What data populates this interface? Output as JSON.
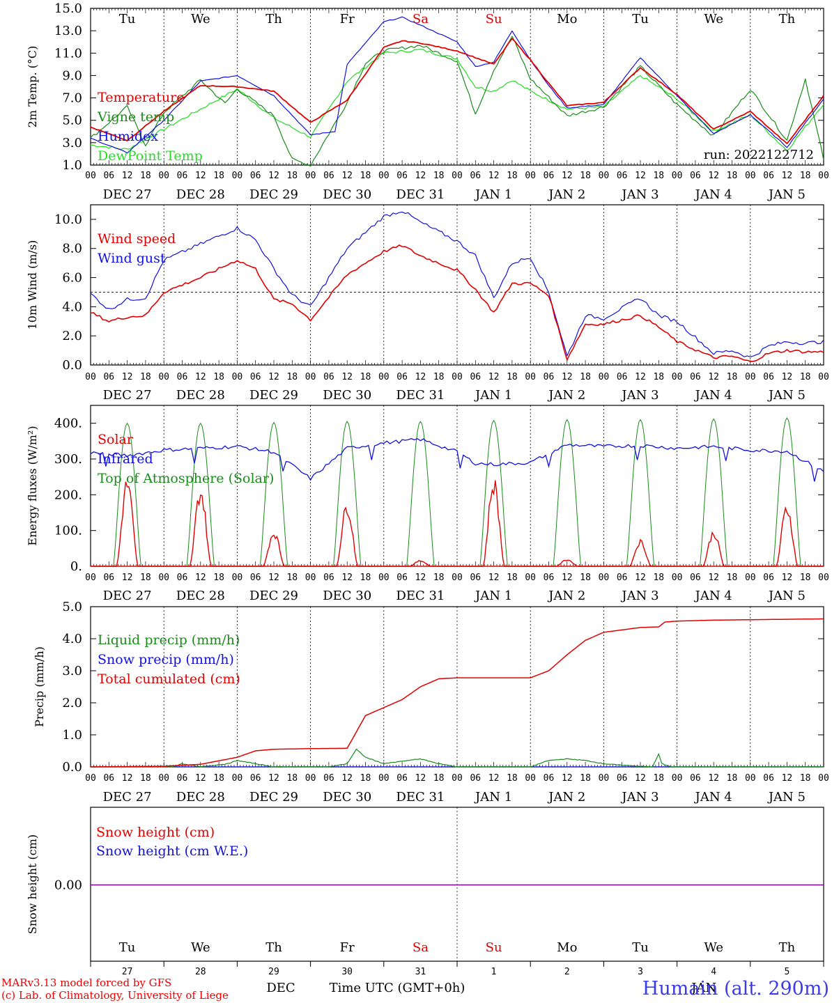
{
  "footer": {
    "model_line1": "MARv3.13 model forced by GFS",
    "model_line2": "(c) Lab. of Climatology, University of Liege",
    "month_label": "DEC",
    "month_label2": "JAN",
    "time_label": "Time UTC (GMT+0h)",
    "location": "Humain (alt. 290m)"
  },
  "colors": {
    "red": "#e00000",
    "green": "#1a8a1a",
    "blue": "#1010e0",
    "lightgreen": "#22dd22",
    "purple": "#8000a0"
  },
  "timeline": {
    "day_names": [
      "Tu",
      "We",
      "Th",
      "Fr",
      "Sa",
      "Su",
      "Mo",
      "Tu",
      "We",
      "Th"
    ],
    "weekend_flags": [
      false,
      false,
      false,
      false,
      true,
      true,
      false,
      false,
      false,
      false
    ],
    "date_labels": [
      "DEC 27",
      "DEC 28",
      "DEC 29",
      "DEC 30",
      "DEC 31",
      "JAN  1",
      "JAN  2",
      "JAN  3",
      "JAN  4",
      "JAN  5"
    ],
    "day_numbers": [
      "27",
      "28",
      "29",
      "30",
      "31",
      "1",
      "2",
      "3",
      "4",
      "5"
    ],
    "hour_ticks": [
      "00",
      "06",
      "12",
      "18"
    ],
    "end_tick": "00"
  },
  "chart_data": [
    {
      "type": "line",
      "ylabel": "2m Temp. (°C)",
      "ylim": [
        1,
        15
      ],
      "yticks": [
        "1.0",
        "3.0",
        "5.0",
        "7.0",
        "9.0",
        "11.0",
        "13.0",
        "15.0"
      ],
      "annotation": "run: 2022122712",
      "x_unit": "hours since DEC 27 00 UTC",
      "series": [
        {
          "name": "Temperature",
          "color": "red",
          "x": [
            0,
            12,
            24,
            36,
            48,
            60,
            72,
            84,
            96,
            102,
            108,
            120,
            132,
            138,
            144,
            150,
            156,
            168,
            180,
            192,
            204,
            216,
            228,
            240
          ],
          "values": [
            4.4,
            3.2,
            5.8,
            8.1,
            8.0,
            7.6,
            4.8,
            6.8,
            11.5,
            12.1,
            11.9,
            11.2,
            10.0,
            12.3,
            10.4,
            8.3,
            6.3,
            6.6,
            9.7,
            7.3,
            4.2,
            5.8,
            2.9,
            7.2
          ]
        },
        {
          "name": "Vigne temp",
          "color": "green",
          "x": [
            0,
            12,
            18,
            24,
            36,
            44,
            48,
            60,
            66,
            72,
            84,
            90,
            96,
            108,
            120,
            126,
            132,
            138,
            144,
            156,
            168,
            180,
            192,
            204,
            216,
            228,
            234,
            240
          ],
          "values": [
            3.4,
            6.2,
            2.8,
            5.7,
            8.6,
            6.5,
            7.8,
            5.4,
            1.5,
            1.0,
            6.6,
            10.1,
            11.2,
            11.7,
            10.3,
            5.6,
            9.5,
            12.5,
            8.7,
            5.4,
            6.2,
            9.8,
            6.4,
            3.6,
            7.8,
            3.2,
            8.7,
            1.5
          ]
        },
        {
          "name": "Humidex",
          "color": "blue",
          "x": [
            0,
            12,
            24,
            36,
            48,
            60,
            72,
            80,
            84,
            96,
            102,
            108,
            120,
            126,
            132,
            138,
            144,
            150,
            156,
            168,
            180,
            192,
            204,
            216,
            228,
            240
          ],
          "values": [
            3.4,
            2.1,
            5.0,
            8.5,
            9.0,
            7.2,
            3.7,
            4.0,
            10.0,
            13.8,
            14.2,
            13.5,
            12.0,
            9.8,
            10.2,
            13.0,
            10.4,
            8.1,
            6.1,
            6.4,
            10.6,
            7.2,
            3.8,
            5.5,
            2.6,
            6.9
          ]
        },
        {
          "name": "DewPoint Temp",
          "color": "lightgreen",
          "x": [
            0,
            12,
            24,
            36,
            48,
            60,
            72,
            84,
            96,
            108,
            120,
            126,
            132,
            138,
            144,
            156,
            168,
            180,
            192,
            204,
            216,
            228,
            240
          ],
          "values": [
            2.8,
            2.4,
            4.2,
            6.0,
            7.8,
            5.2,
            3.5,
            8.5,
            11.0,
            11.3,
            10.5,
            8.0,
            7.6,
            8.6,
            7.6,
            6.0,
            6.2,
            9.0,
            6.9,
            4.0,
            5.5,
            2.3,
            6.5
          ]
        }
      ]
    },
    {
      "type": "line",
      "ylabel": "10m Wind (m/s)",
      "ylim": [
        0,
        11
      ],
      "yticks": [
        "0.0",
        "2.0",
        "4.0",
        "6.0",
        "8.0",
        "10.0"
      ],
      "reference_line": 5.0,
      "x_unit": "hours since DEC 27 00 UTC",
      "series": [
        {
          "name": "Wind speed",
          "color": "red",
          "x": [
            0,
            6,
            12,
            18,
            24,
            36,
            48,
            54,
            60,
            66,
            72,
            84,
            96,
            102,
            108,
            120,
            126,
            132,
            138,
            144,
            150,
            156,
            162,
            168,
            180,
            186,
            192,
            204,
            210,
            216,
            222,
            228,
            234,
            240
          ],
          "values": [
            3.6,
            3.0,
            3.3,
            3.4,
            5.0,
            6.0,
            7.2,
            6.6,
            4.5,
            4.2,
            3.1,
            6.2,
            7.8,
            8.2,
            7.5,
            6.5,
            5.2,
            3.6,
            5.6,
            5.6,
            4.8,
            0.4,
            2.8,
            2.8,
            3.4,
            2.6,
            1.6,
            0.5,
            0.6,
            0.2,
            0.8,
            1.0,
            0.9,
            0.9
          ]
        },
        {
          "name": "Wind gust",
          "color": "blue",
          "x": [
            0,
            6,
            12,
            18,
            24,
            36,
            48,
            54,
            60,
            66,
            72,
            84,
            96,
            102,
            108,
            120,
            126,
            132,
            138,
            144,
            150,
            156,
            162,
            168,
            180,
            186,
            192,
            204,
            210,
            216,
            222,
            228,
            234,
            240
          ],
          "values": [
            4.9,
            3.8,
            4.5,
            4.6,
            7.2,
            8.3,
            9.4,
            8.6,
            6.6,
            4.8,
            4.0,
            8.0,
            10.2,
            10.6,
            9.8,
            8.5,
            7.5,
            4.6,
            7.0,
            7.4,
            5.0,
            0.6,
            3.4,
            3.2,
            4.6,
            3.4,
            3.0,
            0.8,
            1.0,
            0.5,
            1.3,
            1.6,
            1.5,
            1.6
          ]
        }
      ]
    },
    {
      "type": "line",
      "ylabel": "Energy fluxes (W/m²)",
      "ylim": [
        0,
        450
      ],
      "yticks": [
        "0.",
        "100.",
        "200.",
        "300.",
        "400."
      ],
      "x_unit": "hours since DEC 27 00 UTC",
      "series": [
        {
          "name": "Solar",
          "color": "red",
          "daily_peak_x": [
            12,
            12,
            12,
            12,
            12,
            12,
            12,
            12,
            12,
            12
          ],
          "daily_peak_values": [
            228,
            204,
            92,
            165,
            15,
            228,
            18,
            68,
            92,
            160
          ]
        },
        {
          "name": "Infrared",
          "color": "blue",
          "x": [
            0,
            12,
            24,
            36,
            48,
            60,
            72,
            84,
            96,
            108,
            120,
            126,
            132,
            144,
            156,
            168,
            180,
            192,
            204,
            216,
            228,
            240
          ],
          "values": [
            318,
            310,
            325,
            330,
            335,
            320,
            245,
            330,
            345,
            355,
            320,
            288,
            285,
            290,
            340,
            335,
            338,
            330,
            335,
            325,
            322,
            265
          ]
        },
        {
          "name": "Top of Atmosphere (Solar)",
          "color": "green",
          "daily_peak_x": [
            12,
            12,
            12,
            12,
            12,
            12,
            12,
            12,
            12,
            12
          ],
          "daily_peak_values": [
            400,
            400,
            402,
            405,
            405,
            408,
            410,
            410,
            412,
            415
          ]
        }
      ]
    },
    {
      "type": "line",
      "ylabel": "Precip (mm/h)",
      "ylim": [
        0,
        5
      ],
      "yticks": [
        "0.0",
        "1.0",
        "2.0",
        "3.0",
        "4.0",
        "5.0"
      ],
      "x_unit": "hours since DEC 27 00 UTC",
      "series": [
        {
          "name": "Liquid precip (mm/h)",
          "color": "green",
          "x": [
            0,
            27,
            30,
            36,
            45,
            48,
            54,
            60,
            78,
            84,
            87,
            90,
            96,
            108,
            114,
            120,
            144,
            150,
            156,
            162,
            168,
            174,
            184,
            186,
            187,
            190,
            192,
            240
          ],
          "values": [
            0,
            0,
            0.1,
            0,
            0.1,
            0.2,
            0.1,
            0,
            0,
            0.1,
            0.55,
            0.3,
            0.1,
            0.25,
            0.1,
            0,
            0,
            0.2,
            0.25,
            0.2,
            0.1,
            0.05,
            0,
            0.4,
            0.1,
            0,
            0,
            0
          ]
        },
        {
          "name": "Snow precip (mm/h)",
          "color": "blue",
          "x": [
            0,
            240
          ],
          "values": [
            0,
            0
          ]
        },
        {
          "name": "Total cumulated (cm)",
          "color": "red",
          "x": [
            0,
            24,
            36,
            48,
            54,
            60,
            72,
            84,
            90,
            96,
            102,
            108,
            114,
            120,
            144,
            150,
            156,
            162,
            168,
            180,
            186,
            188,
            192,
            204,
            240
          ],
          "values": [
            0,
            0.02,
            0.08,
            0.3,
            0.5,
            0.55,
            0.57,
            0.58,
            1.6,
            1.85,
            2.1,
            2.5,
            2.75,
            2.78,
            2.78,
            3.0,
            3.5,
            3.95,
            4.2,
            4.35,
            4.37,
            4.52,
            4.55,
            4.58,
            4.62
          ]
        }
      ]
    },
    {
      "type": "line",
      "ylabel": "Snow height (cm)",
      "yticks": [
        "0.00"
      ],
      "x_unit": "hours since DEC 27 00 UTC",
      "series": [
        {
          "name": "Snow height (cm)",
          "color": "red",
          "x": [
            0,
            240
          ],
          "values": [
            0,
            0
          ]
        },
        {
          "name": "Snow height (cm W.E.)",
          "color": "blue",
          "x": [
            0,
            240
          ],
          "values": [
            0,
            0
          ]
        }
      ]
    }
  ]
}
